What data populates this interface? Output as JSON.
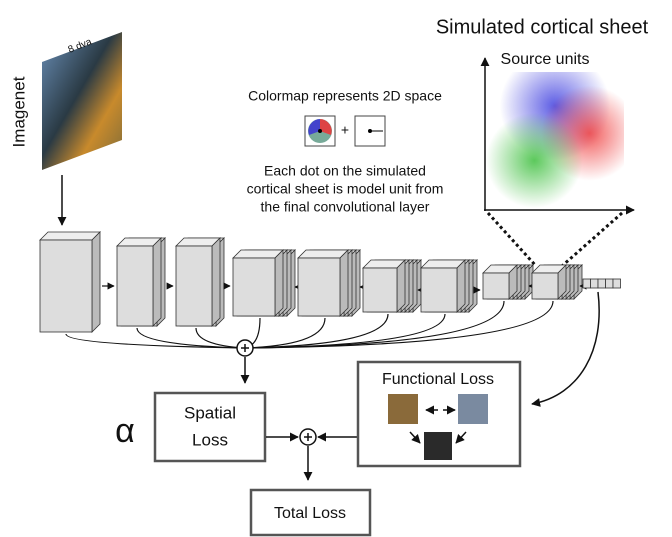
{
  "header": {
    "title": "Simulated cortical sheet"
  },
  "sheet": {
    "label": "Source units"
  },
  "input": {
    "label": "Imagenet",
    "scale": "8 dva"
  },
  "colormap": {
    "caption": "Colormap represents 2D space",
    "plus": "+"
  },
  "note": {
    "lines": [
      "Each dot on the simulated",
      "cortical sheet is model unit from",
      "the final convolutional layer"
    ]
  },
  "losses": {
    "functional": "Functional Loss",
    "spatial": [
      "Spatial",
      "Loss"
    ],
    "alpha": "α",
    "total": "Total Loss"
  }
}
